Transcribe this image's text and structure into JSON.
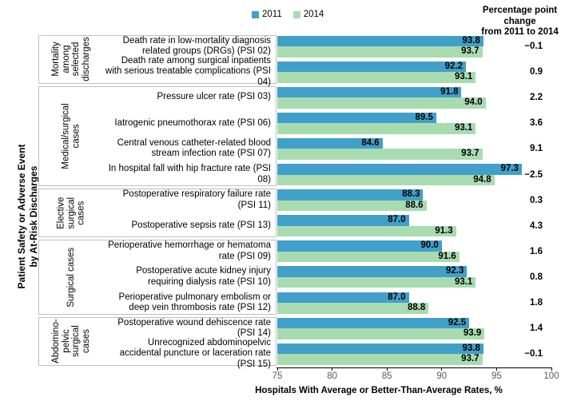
{
  "chart_data": {
    "type": "bar",
    "orientation": "horizontal",
    "x_axis": {
      "label": "Hospitals With Average or Better-Than-Average Rates, %",
      "min": 75,
      "max": 100,
      "ticks": [
        75,
        80,
        85,
        90,
        95,
        100
      ],
      "grid": false
    },
    "y_axis": {
      "title_lines": [
        "Patient Safety or Adverse Event",
        "by At-Risk Discharges"
      ]
    },
    "legend": {
      "position": "top-center",
      "series": [
        {
          "name": "2011",
          "color": "#41A0C9"
        },
        {
          "name": "2014",
          "color": "#A9DBB0"
        }
      ]
    },
    "change_column": {
      "header_lines": [
        "Percentage point",
        "change",
        "from 2011 to 2014"
      ]
    },
    "groups": [
      {
        "label_lines": [
          "Mortality",
          "among",
          "selected",
          "discharges"
        ],
        "items": [
          {
            "label": "Death rate in low-mortality diagnosis related groups (DRGs) (PSI 02)",
            "v2011": 93.8,
            "v2014": 93.7,
            "change": -0.1,
            "change_display": "−0.1"
          },
          {
            "label": "Death rate among surgical inpatients with serious treatable complications (PSI 04)",
            "v2011": 92.2,
            "v2014": 93.1,
            "change": 0.9,
            "change_display": "0.9"
          }
        ]
      },
      {
        "label_lines": [
          "Medical/surgical",
          "cases"
        ],
        "items": [
          {
            "label": "Pressure ulcer rate (PSI 03)",
            "v2011": 91.8,
            "v2014": 94.0,
            "change": 2.2,
            "change_display": "2.2"
          },
          {
            "label": "Iatrogenic pneumothorax rate (PSI 06)",
            "v2011": 89.5,
            "v2014": 93.1,
            "change": 3.6,
            "change_display": "3.6"
          },
          {
            "label": "Central venous catheter-related blood stream infection rate (PSI 07)",
            "v2011": 84.6,
            "v2014": 93.7,
            "change": 9.1,
            "change_display": "9.1"
          },
          {
            "label": "In hospital fall with hip fracture rate (PSI 08)",
            "v2011": 97.3,
            "v2014": 94.8,
            "change": -2.5,
            "change_display": "−2.5"
          }
        ]
      },
      {
        "label_lines": [
          "Elective",
          "surgical",
          "cases"
        ],
        "items": [
          {
            "label": "Postoperative respiratory failure rate (PSI 11)",
            "v2011": 88.3,
            "v2014": 88.6,
            "change": 0.3,
            "change_display": "0.3"
          },
          {
            "label": "Postoperative sepsis rate (PSI 13)",
            "v2011": 87.0,
            "v2014": 91.3,
            "change": 4.3,
            "change_display": "4.3"
          }
        ]
      },
      {
        "label_lines": [
          "Surgical cases"
        ],
        "items": [
          {
            "label": "Perioperative hemorrhage or hematoma rate (PSI 09)",
            "v2011": 90.0,
            "v2014": 91.6,
            "change": 1.6,
            "change_display": "1.6"
          },
          {
            "label": "Postoperative acute kidney injury requiring dialysis rate (PSI 10)",
            "v2011": 92.3,
            "v2014": 93.1,
            "change": 0.8,
            "change_display": "0.8"
          },
          {
            "label": "Perioperative pulmonary embolism or deep vein thrombosis rate (PSI 12)",
            "v2011": 87.0,
            "v2014": 88.8,
            "change": 1.8,
            "change_display": "1.8"
          }
        ]
      },
      {
        "label_lines": [
          "Abdomino-",
          "pelvic",
          "surgical",
          "cases"
        ],
        "items": [
          {
            "label": "Postoperative wound dehiscence rate (PSI 14)",
            "v2011": 92.5,
            "v2014": 93.9,
            "change": 1.4,
            "change_display": "1.4"
          },
          {
            "label": "Unrecognized abdominopelvic accidental puncture or laceration rate (PSI 15)",
            "v2011": 93.8,
            "v2014": 93.7,
            "change": -0.1,
            "change_display": "−0.1"
          }
        ]
      }
    ],
    "colors": {
      "bar_2011": "#41A0C9",
      "bar_2014": "#A9DBB0",
      "box_border": "#bfbfbf",
      "tick_text": "#595959",
      "axis_line": "#000000"
    }
  }
}
